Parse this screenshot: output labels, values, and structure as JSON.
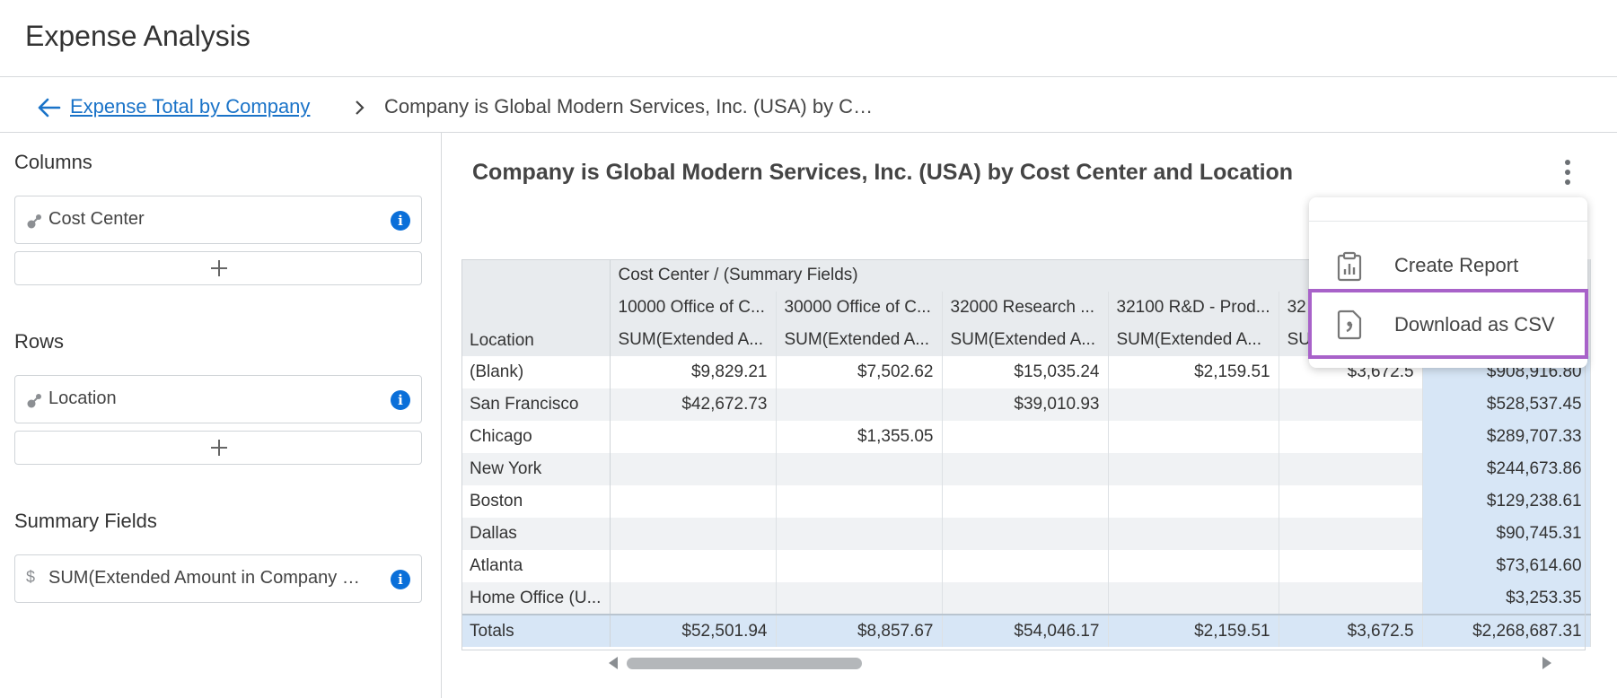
{
  "app": {
    "title": "Expense Analysis"
  },
  "breadcrumb": {
    "back_label": "Expense Total by Company",
    "current": "Company is Global Modern Services, Inc. (USA) by C…"
  },
  "left_panel": {
    "columns": {
      "title": "Columns",
      "field": "Cost Center"
    },
    "rows": {
      "title": "Rows",
      "field": "Location"
    },
    "summary": {
      "title": "Summary Fields",
      "field": "SUM(Extended Amount in Company …",
      "currency_glyph": "$"
    }
  },
  "report": {
    "title": "Company is Global Modern Services, Inc. (USA) by Cost Center and Location",
    "group_header": "Cost Center / (Summary Fields)",
    "row_header": "Location",
    "columns": [
      {
        "name": "10000 Office of C...",
        "field": "SUM(Extended A..."
      },
      {
        "name": "30000 Office of C...",
        "field": "SUM(Extended A..."
      },
      {
        "name": "32000 Research ...",
        "field": "SUM(Extended A..."
      },
      {
        "name": "32100 R&D - Prod...",
        "field": "SUM(Extended A..."
      },
      {
        "name": "32",
        "field": "SU"
      },
      {
        "name": "",
        "field": ""
      }
    ],
    "rows": [
      {
        "label": "(Blank)",
        "values": [
          "$9,829.21",
          "$7,502.62",
          "$15,035.24",
          "$2,159.51",
          "$3,672.5",
          "$908,916.80"
        ]
      },
      {
        "label": "San Francisco",
        "values": [
          "$42,672.73",
          "",
          "$39,010.93",
          "",
          "",
          "$528,537.45"
        ]
      },
      {
        "label": "Chicago",
        "values": [
          "",
          "$1,355.05",
          "",
          "",
          "",
          "$289,707.33"
        ]
      },
      {
        "label": "New York",
        "values": [
          "",
          "",
          "",
          "",
          "",
          "$244,673.86"
        ]
      },
      {
        "label": "Boston",
        "values": [
          "",
          "",
          "",
          "",
          "",
          "$129,238.61"
        ]
      },
      {
        "label": "Dallas",
        "values": [
          "",
          "",
          "",
          "",
          "",
          "$90,745.31"
        ]
      },
      {
        "label": "Atlanta",
        "values": [
          "",
          "",
          "",
          "",
          "",
          "$73,614.60"
        ]
      },
      {
        "label": "Home Office (U...",
        "values": [
          "",
          "",
          "",
          "",
          "",
          "$3,253.35"
        ]
      }
    ],
    "totals": {
      "label": "Totals",
      "values": [
        "$52,501.94",
        "$8,857.67",
        "$54,046.17",
        "$2,159.51",
        "$3,672.5",
        "$2,268,687.31"
      ]
    }
  },
  "menu": {
    "items": [
      {
        "label": "Create Report",
        "icon": "clipboard-chart-icon"
      },
      {
        "label": "Download as CSV",
        "icon": "csv-comma-icon"
      }
    ],
    "highlight_color": "#a862c9"
  },
  "colors": {
    "link": "#1a73c8",
    "info": "#0a6fd9",
    "totals_bg": "#d7e6f6"
  }
}
